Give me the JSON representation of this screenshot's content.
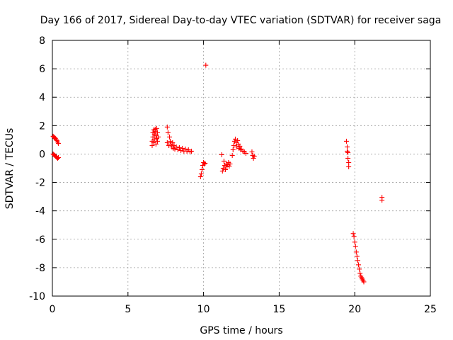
{
  "chart_data": {
    "type": "scatter",
    "title": "Day 166 of 2017, Sidereal Day-to-day VTEC variation (SDTVAR) for receiver saga",
    "xlabel": "GPS time / hours",
    "ylabel": "SDTVAR / TECUs",
    "xlim": [
      0,
      25
    ],
    "ylim": [
      -10,
      8
    ],
    "xticks": [
      0,
      5,
      10,
      15,
      20,
      25
    ],
    "yticks": [
      -10,
      -8,
      -6,
      -4,
      -2,
      0,
      2,
      4,
      6,
      8
    ],
    "xtick_labels": [
      "0",
      "5",
      "10",
      "15",
      "20",
      "25"
    ],
    "ytick_labels": [
      "-10",
      "-8",
      "-6",
      "-4",
      "-2",
      "0",
      "2",
      "4",
      "6",
      "8"
    ],
    "grid": true,
    "marker": "+",
    "series": [
      {
        "name": "SDTVAR",
        "color": "#ff0000",
        "points": [
          [
            0.05,
            1.25
          ],
          [
            0.1,
            1.2
          ],
          [
            0.15,
            1.15
          ],
          [
            0.2,
            1.1
          ],
          [
            0.25,
            1.0
          ],
          [
            0.3,
            0.95
          ],
          [
            0.35,
            0.85
          ],
          [
            0.4,
            0.75
          ],
          [
            0.05,
            0.0
          ],
          [
            0.1,
            -0.05
          ],
          [
            0.15,
            -0.1
          ],
          [
            0.2,
            -0.15
          ],
          [
            0.25,
            -0.2
          ],
          [
            0.3,
            -0.25
          ],
          [
            0.35,
            -0.3
          ],
          [
            0.4,
            -0.25
          ],
          [
            6.6,
            0.6
          ],
          [
            6.6,
            0.9
          ],
          [
            6.65,
            1.2
          ],
          [
            6.65,
            1.5
          ],
          [
            6.7,
            1.7
          ],
          [
            6.7,
            0.8
          ],
          [
            6.75,
            1.0
          ],
          [
            6.75,
            1.4
          ],
          [
            6.8,
            1.6
          ],
          [
            6.8,
            1.75
          ],
          [
            6.85,
            1.3
          ],
          [
            6.85,
            0.7
          ],
          [
            6.9,
            1.8
          ],
          [
            6.9,
            1.1
          ],
          [
            6.95,
            0.9
          ],
          [
            6.95,
            1.5
          ],
          [
            7.0,
            1.2
          ],
          [
            7.6,
            1.9
          ],
          [
            7.65,
            1.5
          ],
          [
            7.6,
            0.8
          ],
          [
            7.7,
            0.6
          ],
          [
            7.75,
            1.2
          ],
          [
            7.8,
            0.9
          ],
          [
            7.85,
            0.7
          ],
          [
            7.9,
            0.5
          ],
          [
            7.95,
            0.8
          ],
          [
            8.0,
            0.4
          ],
          [
            8.05,
            0.6
          ],
          [
            8.1,
            0.35
          ],
          [
            8.2,
            0.5
          ],
          [
            8.3,
            0.3
          ],
          [
            8.4,
            0.45
          ],
          [
            8.5,
            0.25
          ],
          [
            8.6,
            0.4
          ],
          [
            8.7,
            0.2
          ],
          [
            8.8,
            0.35
          ],
          [
            8.9,
            0.2
          ],
          [
            9.0,
            0.3
          ],
          [
            9.1,
            0.15
          ],
          [
            9.2,
            0.2
          ],
          [
            9.8,
            -1.6
          ],
          [
            9.85,
            -1.4
          ],
          [
            9.9,
            -1.1
          ],
          [
            9.95,
            -0.8
          ],
          [
            10.0,
            -0.6
          ],
          [
            10.05,
            -0.7
          ],
          [
            10.1,
            -0.65
          ],
          [
            10.15,
            6.25
          ],
          [
            11.2,
            -0.05
          ],
          [
            11.25,
            -1.2
          ],
          [
            11.3,
            -1.0
          ],
          [
            11.35,
            -0.5
          ],
          [
            11.4,
            -0.8
          ],
          [
            11.45,
            -1.1
          ],
          [
            11.5,
            -0.7
          ],
          [
            11.55,
            -0.9
          ],
          [
            11.6,
            -0.75
          ],
          [
            11.65,
            -0.6
          ],
          [
            11.7,
            -0.85
          ],
          [
            11.75,
            -0.7
          ],
          [
            11.9,
            -0.1
          ],
          [
            11.95,
            0.3
          ],
          [
            12.0,
            0.6
          ],
          [
            12.05,
            0.9
          ],
          [
            12.1,
            1.05
          ],
          [
            12.15,
            0.8
          ],
          [
            12.2,
            0.5
          ],
          [
            12.25,
            0.95
          ],
          [
            12.3,
            0.7
          ],
          [
            12.35,
            0.4
          ],
          [
            12.4,
            0.55
          ],
          [
            12.45,
            0.3
          ],
          [
            12.5,
            0.35
          ],
          [
            12.6,
            0.2
          ],
          [
            12.7,
            0.15
          ],
          [
            12.8,
            0.05
          ],
          [
            13.2,
            0.15
          ],
          [
            13.25,
            -0.1
          ],
          [
            13.3,
            -0.3
          ],
          [
            13.35,
            -0.15
          ],
          [
            19.45,
            0.9
          ],
          [
            19.5,
            0.5
          ],
          [
            19.5,
            0.2
          ],
          [
            19.55,
            0.1
          ],
          [
            19.55,
            -0.3
          ],
          [
            19.6,
            -0.6
          ],
          [
            19.6,
            -0.9
          ],
          [
            19.9,
            -5.6
          ],
          [
            19.95,
            -5.8
          ],
          [
            20.0,
            -6.2
          ],
          [
            20.05,
            -6.5
          ],
          [
            20.1,
            -6.9
          ],
          [
            20.15,
            -7.2
          ],
          [
            20.2,
            -7.5
          ],
          [
            20.25,
            -7.8
          ],
          [
            20.3,
            -8.1
          ],
          [
            20.35,
            -8.4
          ],
          [
            20.4,
            -8.6
          ],
          [
            20.45,
            -8.7
          ],
          [
            20.5,
            -8.8
          ],
          [
            20.55,
            -8.9
          ],
          [
            20.6,
            -9.0
          ],
          [
            21.8,
            -3.05
          ],
          [
            21.8,
            -3.25
          ]
        ]
      }
    ]
  }
}
